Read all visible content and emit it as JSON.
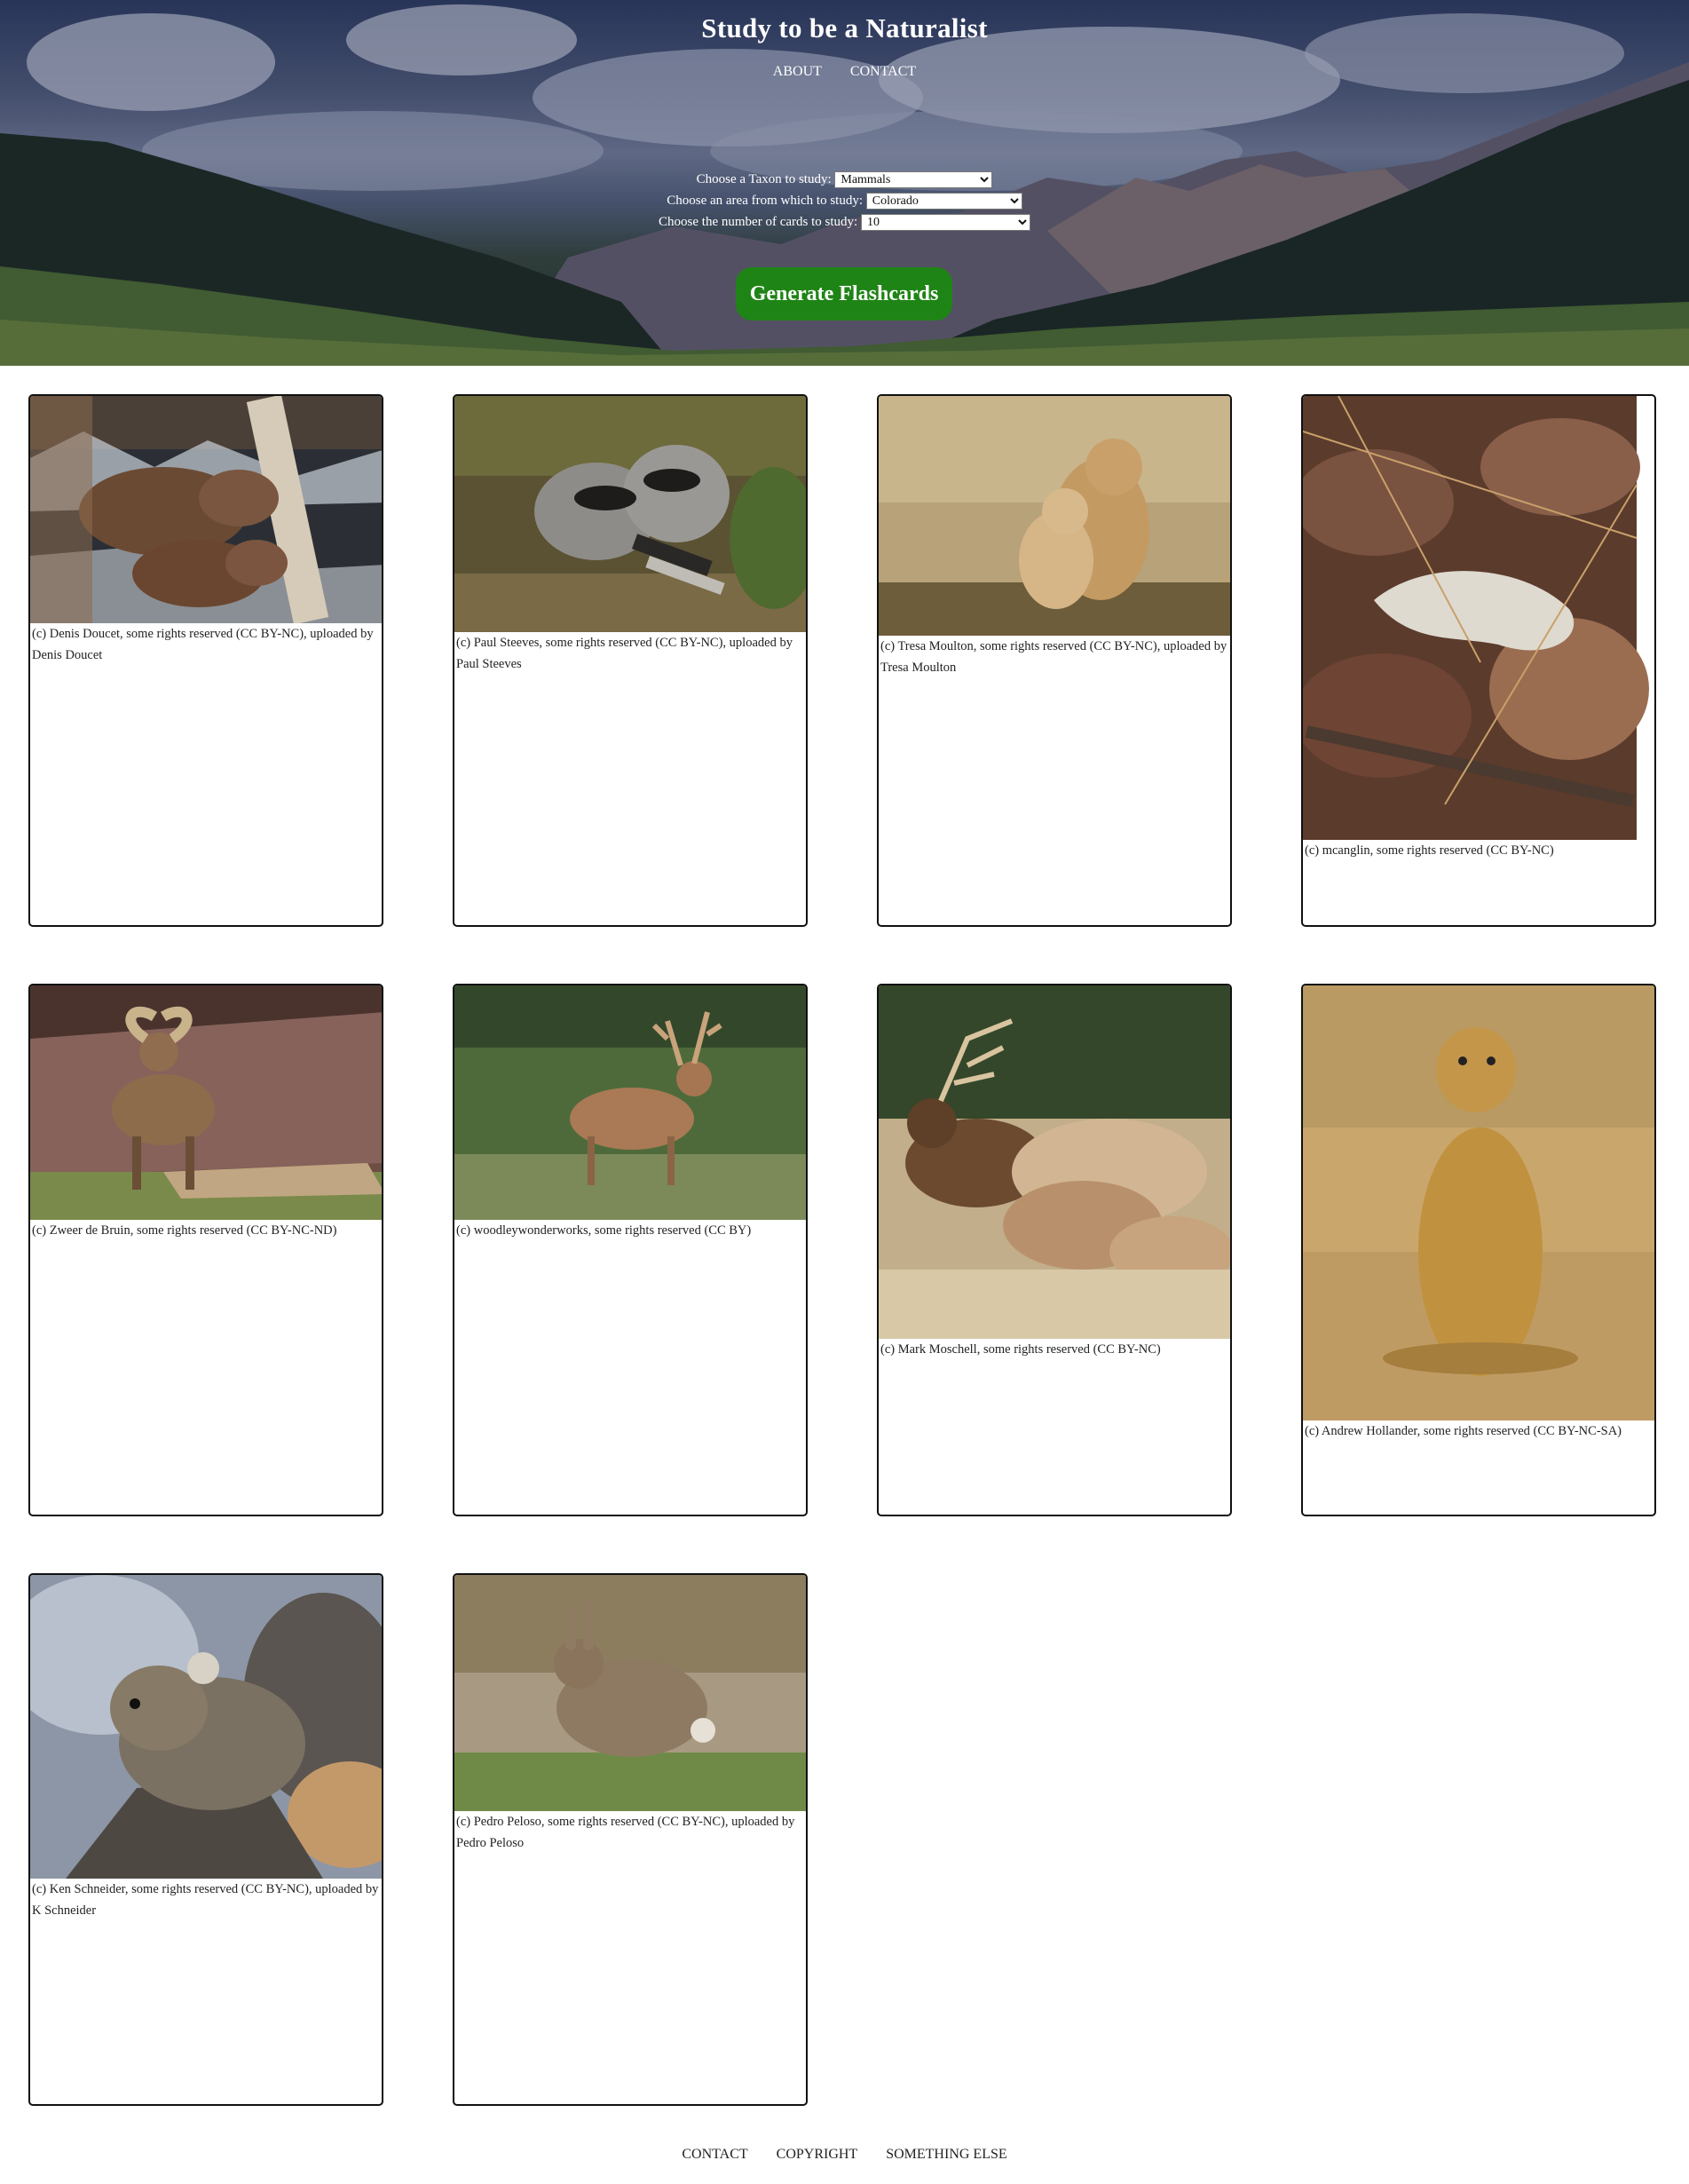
{
  "header": {
    "title": "Study to be a Naturalist",
    "nav": [
      "ABOUT",
      "CONTACT"
    ]
  },
  "form": {
    "taxon_label": "Choose a Taxon to study:",
    "taxon_value": "Mammals",
    "area_label": "Choose an area from which to study:",
    "area_value": "Colorado",
    "count_label": "Choose the number of cards to study:",
    "count_value": "10",
    "generate_label": "Generate Flashcards"
  },
  "cards": [
    {
      "caption": "(c) Denis Doucet, some rights reserved (CC BY-NC), uploaded by Denis Doucet",
      "subject": "beaver"
    },
    {
      "caption": "(c) Paul Steeves, some rights reserved (CC BY-NC), uploaded by Paul Steeves",
      "subject": "raccoon"
    },
    {
      "caption": "(c) Tresa Moulton, some rights reserved (CC BY-NC), uploaded by Tresa Moulton",
      "subject": "ground squirrel"
    },
    {
      "caption": "(c) mcanglin, some rights reserved (CC BY-NC)",
      "subject": "leaf litter"
    },
    {
      "caption": "(c) Zweer de Bruin, some rights reserved (CC BY-NC-ND)",
      "subject": "bighorn sheep"
    },
    {
      "caption": "(c) woodleywonderworks, some rights reserved (CC BY)",
      "subject": "mule deer"
    },
    {
      "caption": "(c) Mark Moschell, some rights reserved (CC BY-NC)",
      "subject": "elk"
    },
    {
      "caption": "(c) Andrew Hollander, some rights reserved (CC BY-NC-SA)",
      "subject": "prairie dog"
    },
    {
      "caption": "(c) Ken Schneider, some rights reserved (CC BY-NC), uploaded by K Schneider",
      "subject": "pika"
    },
    {
      "caption": "(c) Pedro Peloso, some rights reserved (CC BY-NC), uploaded by Pedro Peloso",
      "subject": "cottontail rabbit"
    }
  ],
  "footer": {
    "links": [
      "CONTACT",
      "COPYRIGHT",
      "SOMETHING ELSE"
    ]
  }
}
